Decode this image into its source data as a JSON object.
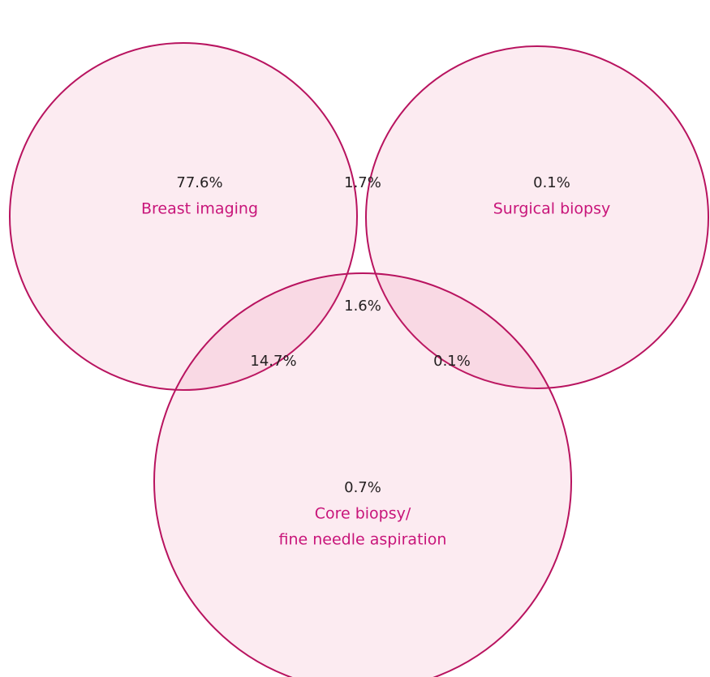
{
  "sets": [
    {
      "label_lines": [
        "Breast imaging"
      ],
      "value": "77.6%"
    },
    {
      "label_lines": [
        "Surgical biopsy"
      ],
      "value": "0.1%"
    },
    {
      "label_lines": [
        "Core biopsy/",
        "fine needle aspiration"
      ],
      "value": "0.7%"
    }
  ],
  "intersections": [
    {
      "value": "1.7%"
    },
    {
      "value": "14.7%"
    },
    {
      "value": "0.1%"
    },
    {
      "value": "1.6%"
    }
  ]
}
